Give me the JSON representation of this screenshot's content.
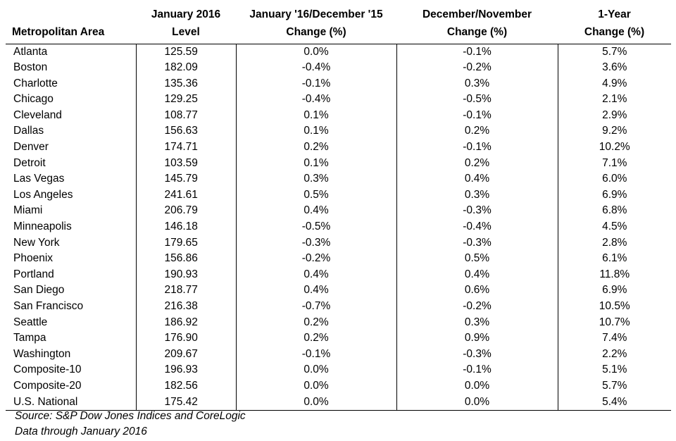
{
  "headers": [
    {
      "line1": "",
      "line2": "Metropolitan Area"
    },
    {
      "line1": "January 2016",
      "line2": "Level"
    },
    {
      "line1": "January '16/December '15",
      "line2": "Change (%)"
    },
    {
      "line1": "December/November",
      "line2": "Change (%)"
    },
    {
      "line1": "1-Year",
      "line2": "Change (%)"
    }
  ],
  "rows": [
    [
      "Atlanta",
      "125.59",
      "0.0%",
      "-0.1%",
      "5.7%"
    ],
    [
      "Boston",
      "182.09",
      "-0.4%",
      "-0.2%",
      "3.6%"
    ],
    [
      "Charlotte",
      "135.36",
      "-0.1%",
      "0.3%",
      "4.9%"
    ],
    [
      "Chicago",
      "129.25",
      "-0.4%",
      "-0.5%",
      "2.1%"
    ],
    [
      "Cleveland",
      "108.77",
      "0.1%",
      "-0.1%",
      "2.9%"
    ],
    [
      "Dallas",
      "156.63",
      "0.1%",
      "0.2%",
      "9.2%"
    ],
    [
      "Denver",
      "174.71",
      "0.2%",
      "-0.1%",
      "10.2%"
    ],
    [
      "Detroit",
      "103.59",
      "0.1%",
      "0.2%",
      "7.1%"
    ],
    [
      "Las Vegas",
      "145.79",
      "0.3%",
      "0.4%",
      "6.0%"
    ],
    [
      "Los Angeles",
      "241.61",
      "0.5%",
      "0.3%",
      "6.9%"
    ],
    [
      "Miami",
      "206.79",
      "0.4%",
      "-0.3%",
      "6.8%"
    ],
    [
      "Minneapolis",
      "146.18",
      "-0.5%",
      "-0.4%",
      "4.5%"
    ],
    [
      "New York",
      "179.65",
      "-0.3%",
      "-0.3%",
      "2.8%"
    ],
    [
      "Phoenix",
      "156.86",
      "-0.2%",
      "0.5%",
      "6.1%"
    ],
    [
      "Portland",
      "190.93",
      "0.4%",
      "0.4%",
      "11.8%"
    ],
    [
      "San Diego",
      "218.77",
      "0.4%",
      "0.6%",
      "6.9%"
    ],
    [
      "San Francisco",
      "216.38",
      "-0.7%",
      "-0.2%",
      "10.5%"
    ],
    [
      "Seattle",
      "186.92",
      "0.2%",
      "0.3%",
      "10.7%"
    ],
    [
      "Tampa",
      "176.90",
      "0.2%",
      "0.9%",
      "7.4%"
    ],
    [
      "Washington",
      "209.67",
      "-0.1%",
      "-0.3%",
      "2.2%"
    ],
    [
      "Composite-10",
      "196.93",
      "0.0%",
      "-0.1%",
      "5.1%"
    ],
    [
      "Composite-20",
      "182.56",
      "0.0%",
      "0.0%",
      "5.7%"
    ],
    [
      "U.S. National",
      "175.42",
      "0.0%",
      "0.0%",
      "5.4%"
    ]
  ],
  "footer": {
    "source": "Source: S&P Dow Jones Indices and CoreLogic",
    "data_through": "Data through January 2016"
  }
}
